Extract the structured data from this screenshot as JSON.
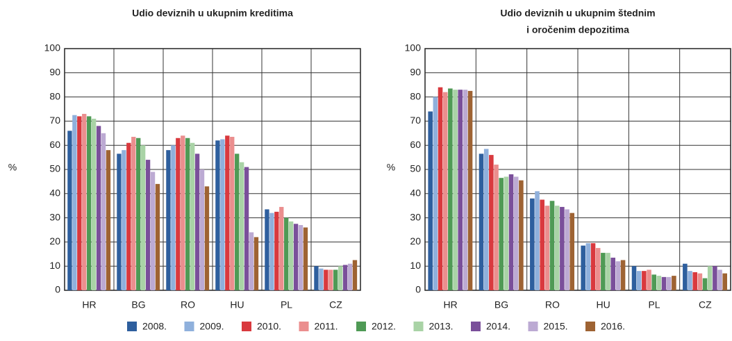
{
  "chart_data": [
    {
      "type": "bar",
      "title": [
        "Udio deviznih u ukupnim kreditima"
      ],
      "ylabel": "%",
      "categories": [
        "HR",
        "BG",
        "RO",
        "HU",
        "PL",
        "CZ"
      ],
      "ylim": [
        0,
        100
      ],
      "yticks": [
        0,
        10,
        20,
        30,
        40,
        50,
        60,
        70,
        80,
        90,
        100
      ],
      "grid": true,
      "series": [
        {
          "name": "2008.",
          "color": "#2e5f9e",
          "values": [
            66,
            56.5,
            58,
            62,
            33.5,
            10
          ]
        },
        {
          "name": "2009.",
          "color": "#8fb0dc",
          "values": [
            72.5,
            58,
            60,
            62.5,
            32,
            9
          ]
        },
        {
          "name": "2010.",
          "color": "#d9393e",
          "values": [
            72,
            61,
            63,
            64,
            32.5,
            8.5
          ]
        },
        {
          "name": "2011.",
          "color": "#eb8e8e",
          "values": [
            73,
            63.5,
            64,
            63.5,
            34.5,
            8.5
          ]
        },
        {
          "name": "2012.",
          "color": "#4f9a55",
          "values": [
            72,
            63,
            63,
            56.5,
            30,
            8.5
          ]
        },
        {
          "name": "2013.",
          "color": "#a9d3a6",
          "values": [
            71,
            60,
            61,
            53,
            28.5,
            10
          ]
        },
        {
          "name": "2014.",
          "color": "#7a4f9a",
          "values": [
            68,
            54,
            56.5,
            51,
            27.5,
            10.5
          ]
        },
        {
          "name": "2015.",
          "color": "#bcaad3",
          "values": [
            65,
            49,
            50,
            24,
            27,
            11
          ]
        },
        {
          "name": "2016.",
          "color": "#9e6333",
          "values": [
            58,
            44,
            43,
            22,
            26,
            12.5
          ]
        }
      ]
    },
    {
      "type": "bar",
      "title": [
        "Udio deviznih u ukupnim štednim",
        "i oročenim depozitima"
      ],
      "ylabel": "%",
      "categories": [
        "HR",
        "BG",
        "RO",
        "HU",
        "PL",
        "CZ"
      ],
      "ylim": [
        0,
        100
      ],
      "yticks": [
        0,
        10,
        20,
        30,
        40,
        50,
        60,
        70,
        80,
        90,
        100
      ],
      "grid": true,
      "series": [
        {
          "values": [
            74,
            56.5,
            38,
            18.5,
            10,
            11
          ]
        },
        {
          "values": [
            80,
            58.5,
            41,
            19.5,
            8,
            8
          ]
        },
        {
          "values": [
            84,
            56,
            37.5,
            19.5,
            8,
            7.5
          ]
        },
        {
          "values": [
            82,
            52,
            35,
            17.5,
            8.5,
            7
          ]
        },
        {
          "values": [
            83.5,
            46.5,
            37,
            15.5,
            6.5,
            5
          ]
        },
        {
          "values": [
            83,
            47,
            35,
            15.5,
            6,
            10
          ]
        },
        {
          "values": [
            83,
            48,
            34.5,
            13.5,
            5.5,
            10
          ]
        },
        {
          "values": [
            83,
            47,
            33.5,
            12,
            5.5,
            8.5
          ]
        },
        {
          "values": [
            82.5,
            45.5,
            32,
            12.5,
            6,
            7
          ]
        }
      ]
    }
  ]
}
